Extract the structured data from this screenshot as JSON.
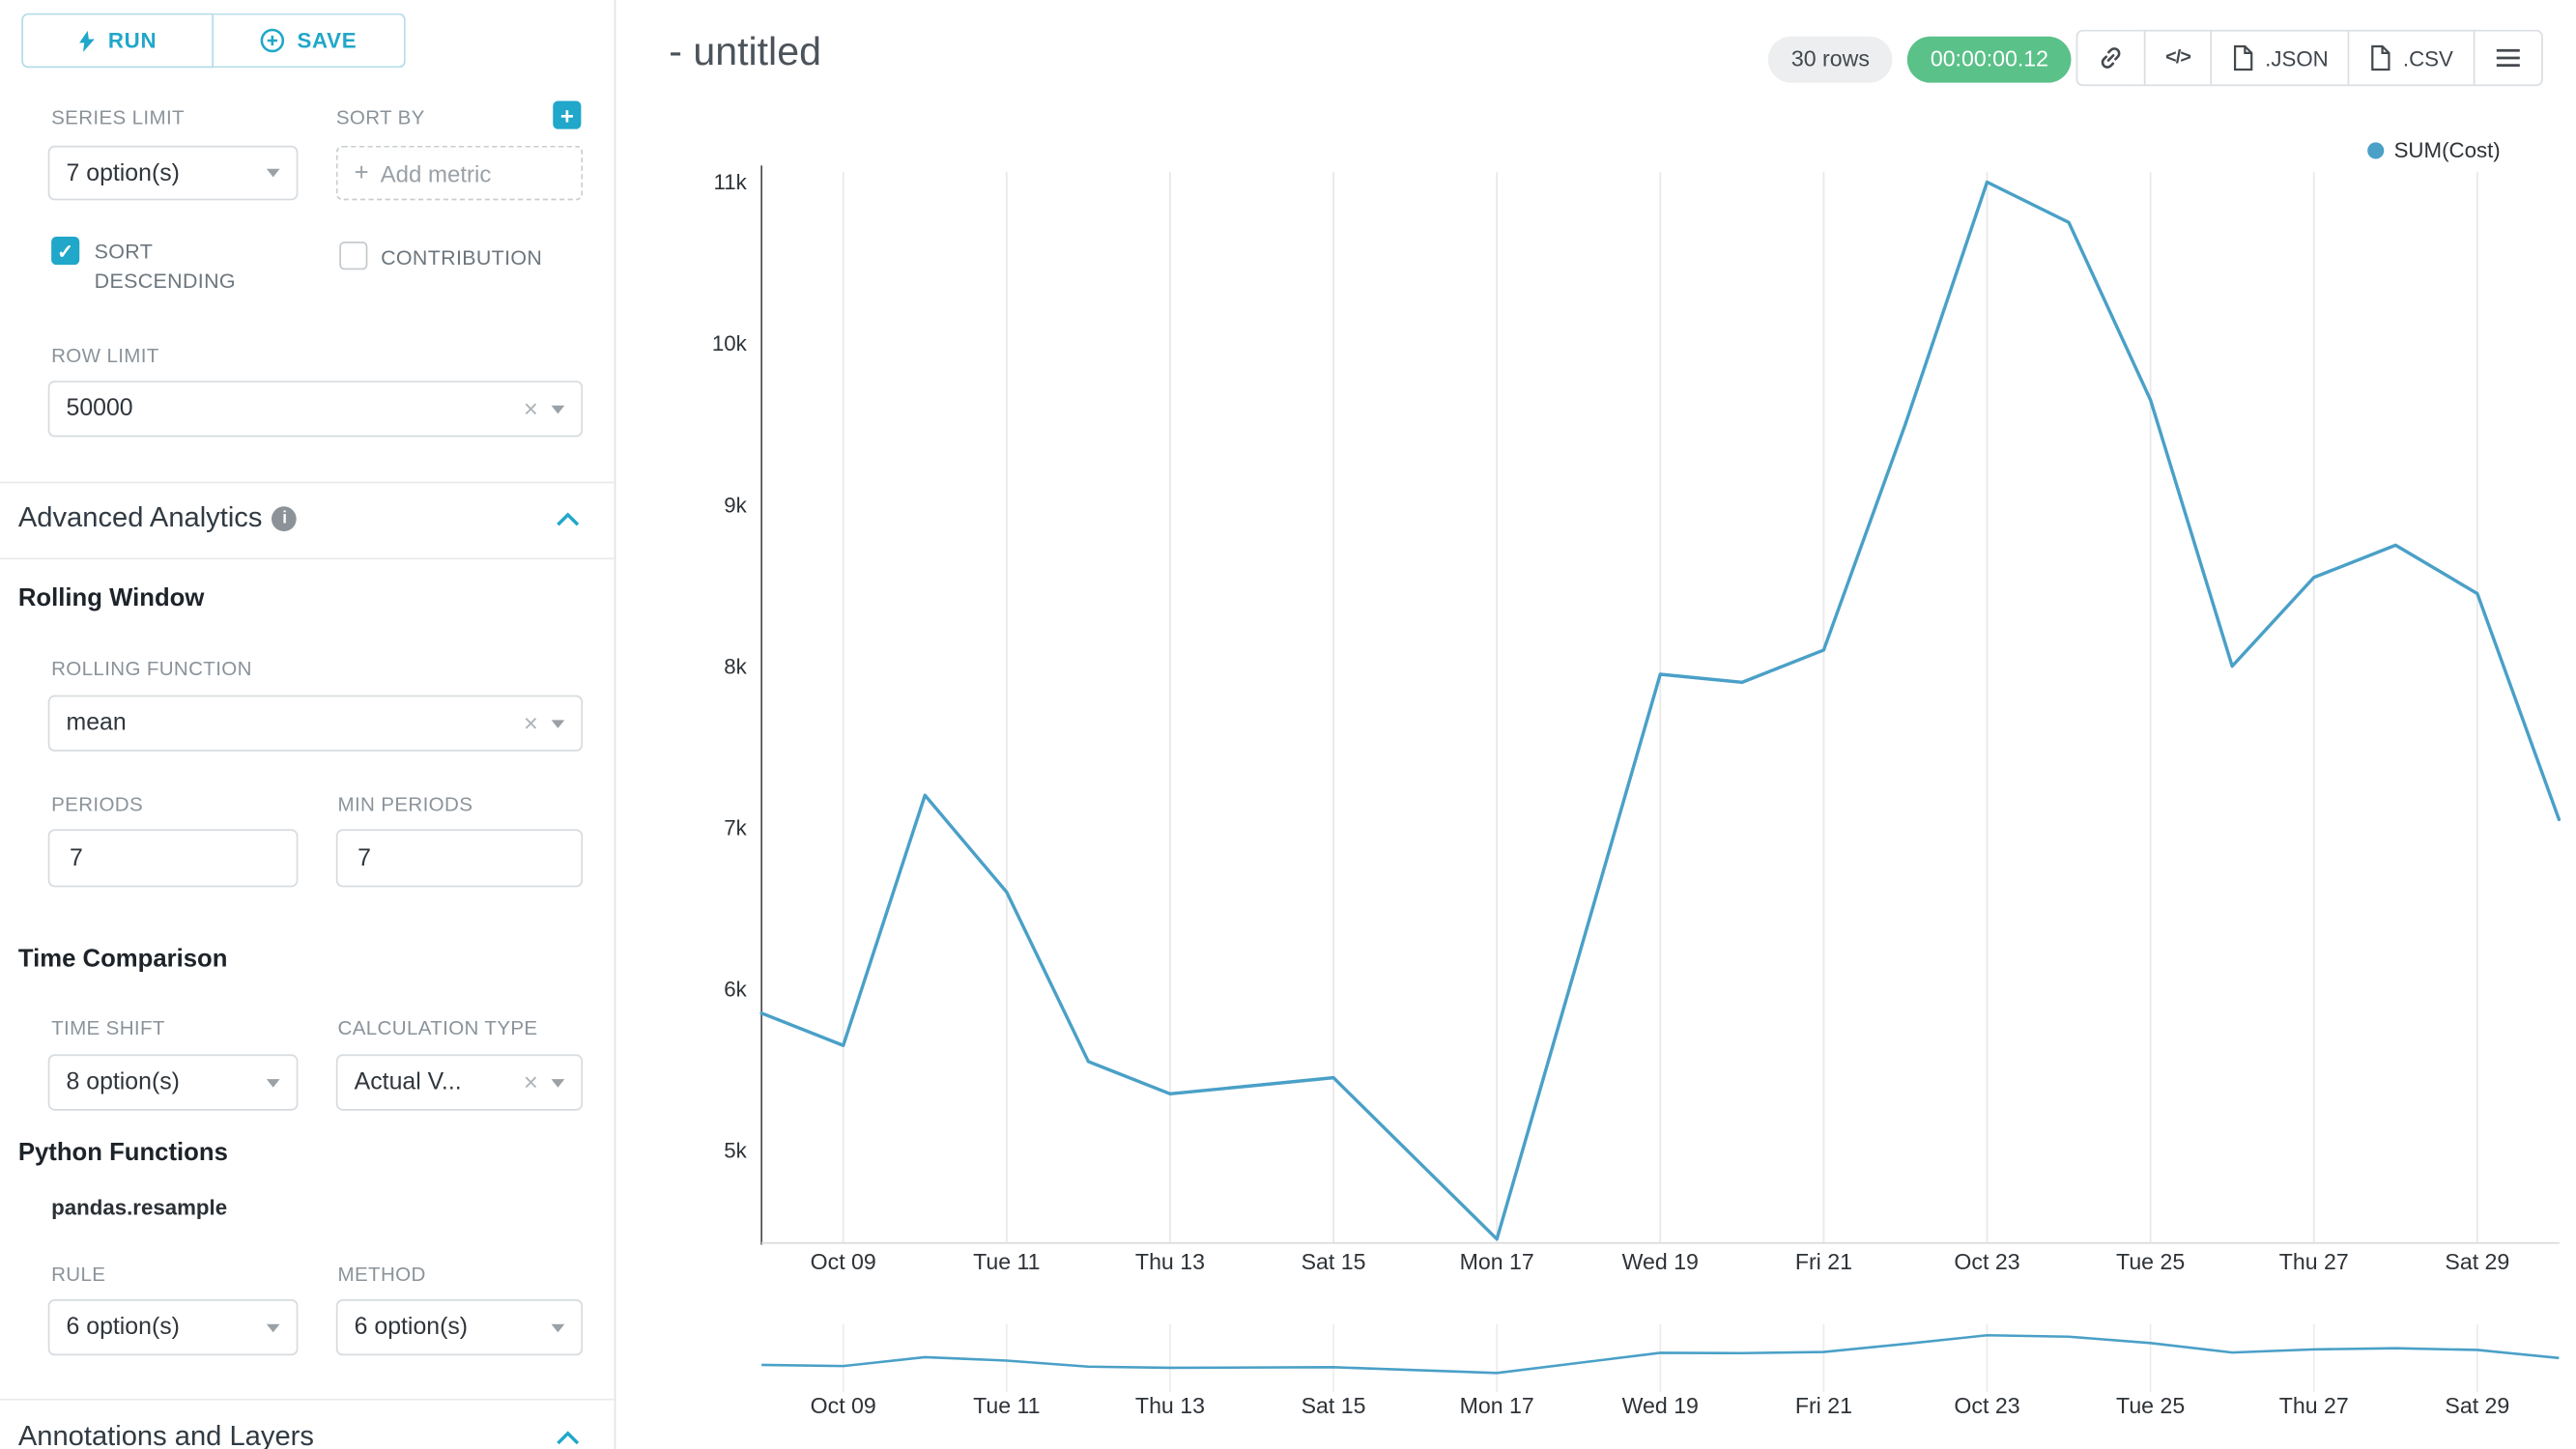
{
  "colors": {
    "primary": "#20a7c9",
    "line": "#4aa0c7",
    "timer_bg": "#5ac189",
    "rows_badge_bg": "#eceef0"
  },
  "sidebar": {
    "run_label": "RUN",
    "save_label": "SAVE",
    "series_limit": {
      "label": "SERIES LIMIT",
      "value": "7 option(s)"
    },
    "sort_by": {
      "label": "SORT BY",
      "placeholder": "Add metric"
    },
    "sort_descending": {
      "label": "SORT DESCENDING",
      "checked": true
    },
    "contribution": {
      "label": "CONTRIBUTION",
      "checked": false
    },
    "row_limit": {
      "label": "ROW LIMIT",
      "value": "50000"
    },
    "advanced_analytics_title": "Advanced Analytics",
    "rolling_window_title": "Rolling Window",
    "rolling_function": {
      "label": "ROLLING FUNCTION",
      "value": "mean"
    },
    "periods": {
      "label": "PERIODS",
      "value": "7"
    },
    "min_periods": {
      "label": "MIN PERIODS",
      "value": "7"
    },
    "time_comparison_title": "Time Comparison",
    "time_shift": {
      "label": "TIME SHIFT",
      "value": "8 option(s)"
    },
    "calculation_type": {
      "label": "CALCULATION TYPE",
      "value": "Actual V..."
    },
    "python_functions_title": "Python Functions",
    "pandas_resample_label": "pandas.resample",
    "rule": {
      "label": "RULE",
      "value": "6 option(s)"
    },
    "method": {
      "label": "METHOD",
      "value": "6 option(s)"
    },
    "annotations_title": "Annotations and Layers"
  },
  "header": {
    "title": "- untitled",
    "rows_badge": "30 rows",
    "timer": "00:00:00.12",
    "code_glyph": "</>",
    "json_label": ".JSON",
    "csv_label": ".CSV"
  },
  "chart_data": {
    "type": "line",
    "title": "",
    "legend_position": "top-right",
    "x": [
      "Oct 08",
      "Oct 09",
      "Oct 10",
      "Oct 11",
      "Oct 12",
      "Oct 13",
      "Oct 14",
      "Oct 15",
      "Oct 16",
      "Oct 17",
      "Oct 18",
      "Oct 19",
      "Oct 20",
      "Oct 21",
      "Oct 22",
      "Oct 23",
      "Oct 24",
      "Oct 25",
      "Oct 26",
      "Oct 27",
      "Oct 28",
      "Oct 29",
      "Oct 30"
    ],
    "series": [
      {
        "name": "SUM(Cost)",
        "color": "#4aa0c7",
        "values": [
          5850,
          5650,
          7200,
          6600,
          5550,
          5350,
          5400,
          5450,
          4950,
          4450,
          6200,
          7950,
          7900,
          8100,
          9500,
          11000,
          10750,
          9650,
          8000,
          8550,
          8750,
          8450,
          7050
        ]
      }
    ],
    "x_tick_labels": [
      "Oct 09",
      "Tue 11",
      "Thu 13",
      "Sat 15",
      "Mon 17",
      "Wed 19",
      "Fri 21",
      "Oct 23",
      "Tue 25",
      "Thu 27",
      "Sat 29"
    ],
    "x_tick_indices": [
      1,
      3,
      5,
      7,
      9,
      11,
      13,
      15,
      17,
      19,
      21
    ],
    "y_ticks": [
      5000,
      6000,
      7000,
      8000,
      9000,
      10000,
      11000
    ],
    "y_tick_labels": [
      "5k",
      "6k",
      "7k",
      "8k",
      "9k",
      "10k",
      "11k"
    ],
    "ylim": [
      4400,
      11150
    ],
    "grid": "vertical",
    "has_mini_chart": true
  }
}
